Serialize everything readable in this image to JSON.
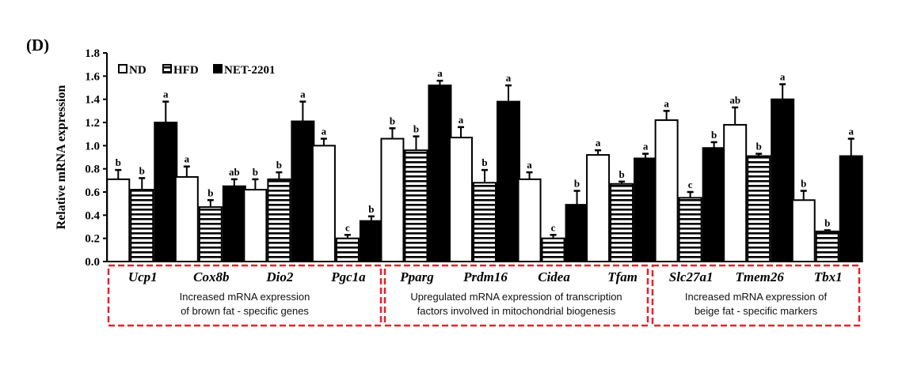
{
  "panel_label": "(D)",
  "chart_data": {
    "type": "bar",
    "title": "",
    "xlabel": "",
    "ylabel": "Relative mRNA expression",
    "ylim": [
      0,
      1.8
    ],
    "yticks": [
      0.0,
      0.2,
      0.4,
      0.6,
      0.8,
      1.0,
      1.2,
      1.4,
      1.6,
      1.8
    ],
    "ytick_labels": [
      "0.0",
      "0.2",
      "0.4",
      "0.6",
      "0.8",
      "1.0",
      "1.2",
      "1.4",
      "1.6",
      "1.8"
    ],
    "grid": false,
    "legend": {
      "placement": "top-left",
      "entries": [
        "ND",
        "HFD",
        "NET-2201"
      ]
    },
    "categories": [
      "Ucp1",
      "Cox8b",
      "Dio2",
      "Pgc1a",
      "Pparg",
      "Prdm16",
      "Cidea",
      "Tfam",
      "Slc27a1",
      "Tmem26",
      "Tbx1"
    ],
    "series": [
      {
        "name": "ND",
        "fill": "open",
        "values": [
          0.71,
          0.73,
          0.62,
          1.0,
          1.06,
          1.07,
          0.71,
          0.92,
          1.22,
          1.18,
          0.53
        ],
        "errors": [
          0.08,
          0.09,
          0.09,
          0.06,
          0.09,
          0.09,
          0.06,
          0.04,
          0.08,
          0.15,
          0.08
        ],
        "letters": [
          "b",
          "a",
          "b",
          "a",
          "b",
          "a",
          "a",
          "a",
          "a",
          "ab",
          "b"
        ]
      },
      {
        "name": "HFD",
        "fill": "striped",
        "values": [
          0.62,
          0.47,
          0.71,
          0.2,
          0.96,
          0.68,
          0.2,
          0.67,
          0.55,
          0.91,
          0.26
        ],
        "errors": [
          0.1,
          0.06,
          0.06,
          0.03,
          0.12,
          0.11,
          0.03,
          0.02,
          0.05,
          0.02,
          0.01
        ],
        "letters": [
          "b",
          "b",
          "b",
          "c",
          "b",
          "b",
          "c",
          "b",
          "c",
          "b",
          "b"
        ]
      },
      {
        "name": "NET-2201",
        "fill": "solid",
        "values": [
          1.2,
          0.65,
          1.21,
          0.35,
          1.52,
          1.38,
          0.49,
          0.89,
          0.98,
          1.4,
          0.91
        ],
        "errors": [
          0.18,
          0.06,
          0.17,
          0.04,
          0.04,
          0.14,
          0.12,
          0.04,
          0.05,
          0.13,
          0.15
        ],
        "letters": [
          "a",
          "ab",
          "a",
          "b",
          "a",
          "a",
          "b",
          "a",
          "b",
          "a",
          "a"
        ]
      }
    ],
    "category_groups": [
      {
        "genes": [
          "Ucp1",
          "Cox8b",
          "Dio2",
          "Pgc1a"
        ],
        "caption_lines": [
          "Increased mRNA expression",
          "of brown fat - specific genes"
        ]
      },
      {
        "genes": [
          "Pparg",
          "Prdm16",
          "Cidea",
          "Tfam"
        ],
        "caption_lines": [
          "Upregulated mRNA expression of transcription",
          "factors involved in mitochondrial biogenesis"
        ]
      },
      {
        "genes": [
          "Slc27a1",
          "Tmem26",
          "Tbx1"
        ],
        "caption_lines": [
          "Increased mRNA expression of",
          "beige fat - specific markers"
        ]
      }
    ]
  },
  "colors": {
    "box_border": "#e8202a",
    "bar_ink": "#000000"
  }
}
